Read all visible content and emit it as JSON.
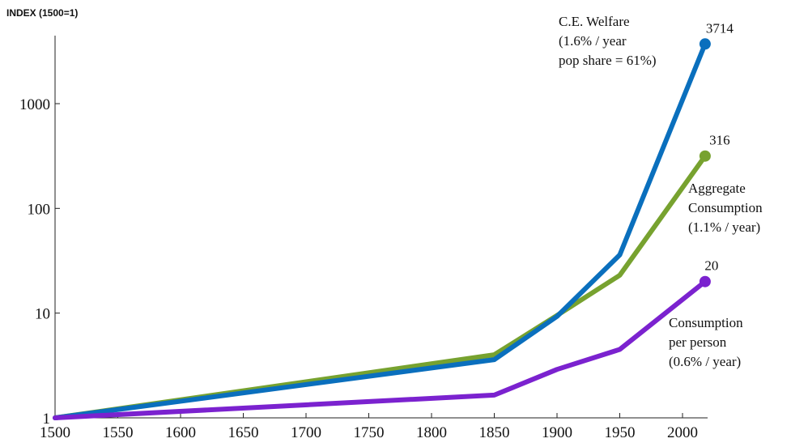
{
  "chart_data": {
    "type": "line",
    "ylabel": "INDEX (1500=1)",
    "yscale": "log",
    "ylim": [
      1,
      4500
    ],
    "xlim": [
      1500,
      2020
    ],
    "x_ticks": [
      "1500",
      "1550",
      "1600",
      "1650",
      "1700",
      "1750",
      "1800",
      "1850",
      "1900",
      "1950",
      "2000"
    ],
    "y_ticks": [
      {
        "value": 1,
        "label": "1"
      },
      {
        "value": 10,
        "label": "10"
      },
      {
        "value": 100,
        "label": "100"
      },
      {
        "value": 1000,
        "label": "1000"
      }
    ],
    "series": [
      {
        "id": "aggregate",
        "color": "#77a22f",
        "x": [
          1500,
          1850,
          1900,
          1950,
          2018
        ],
        "values": [
          1,
          4.0,
          9.5,
          23,
          316
        ],
        "end_label": "316",
        "annotation": [
          "Aggregate",
          "Consumption",
          "(1.1% / year)"
        ]
      },
      {
        "id": "welfare",
        "color": "#0a6fbd",
        "x": [
          1500,
          1850,
          1900,
          1950,
          2018
        ],
        "values": [
          1,
          3.6,
          9.3,
          36,
          3714
        ],
        "end_label": "3714",
        "annotation": [
          "C.E. Welfare",
          "(1.6% / year",
          "pop share = 61%)"
        ]
      },
      {
        "id": "perperson",
        "color": "#7b22cf",
        "x": [
          1500,
          1850,
          1900,
          1950,
          2018
        ],
        "values": [
          1,
          1.65,
          2.9,
          4.5,
          20
        ],
        "end_label": "20",
        "annotation": [
          "Consumption",
          "per person",
          "(0.6% / year)"
        ]
      }
    ],
    "grid": false,
    "legend": "none"
  }
}
